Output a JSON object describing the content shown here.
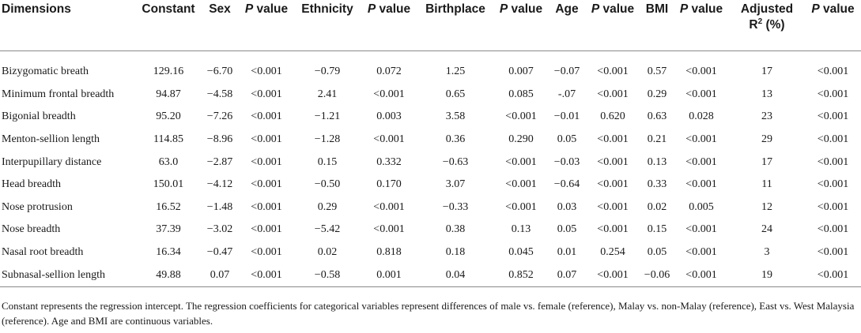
{
  "table": {
    "headers": [
      {
        "plain": "Dimensions"
      },
      {
        "plain": "Constant"
      },
      {
        "plain": "Sex"
      },
      {
        "p": "P",
        "rest": " value"
      },
      {
        "plain": "Ethnicity"
      },
      {
        "p": "P",
        "rest": " value"
      },
      {
        "plain": "Birthplace"
      },
      {
        "p": "P",
        "rest": " value"
      },
      {
        "plain": "Age"
      },
      {
        "p": "P",
        "rest": " value"
      },
      {
        "plain": "BMI"
      },
      {
        "p": "P",
        "rest": " value"
      },
      {
        "line1": "Adjusted",
        "base": "R",
        "sup": "2",
        "tail": " (%)"
      },
      {
        "p": "P",
        "rest": " value"
      }
    ],
    "rows": [
      [
        "Bizygomatic breath",
        "129.16",
        "−6.70",
        "<0.001",
        "−0.79",
        "0.072",
        "1.25",
        "0.007",
        "−0.07",
        "<0.001",
        "0.57",
        "<0.001",
        "17",
        "<0.001"
      ],
      [
        "Minimum frontal breadth",
        "94.87",
        "−4.58",
        "<0.001",
        "2.41",
        "<0.001",
        "0.65",
        "0.085",
        "-.07",
        "<0.001",
        "0.29",
        "<0.001",
        "13",
        "<0.001"
      ],
      [
        "Bigonial breadth",
        "95.20",
        "−7.26",
        "<0.001",
        "−1.21",
        "0.003",
        "3.58",
        "<0.001",
        "−0.01",
        "0.620",
        "0.63",
        "0.028",
        "23",
        "<0.001"
      ],
      [
        "Menton-sellion length",
        "114.85",
        "−8.96",
        "<0.001",
        "−1.28",
        "<0.001",
        "0.36",
        "0.290",
        "0.05",
        "<0.001",
        "0.21",
        "<0.001",
        "29",
        "<0.001"
      ],
      [
        "Interpupillary distance",
        "63.0",
        "−2.87",
        "<0.001",
        "0.15",
        "0.332",
        "−0.63",
        "<0.001",
        "−0.03",
        "<0.001",
        "0.13",
        "<0.001",
        "17",
        "<0.001"
      ],
      [
        "Head breadth",
        "150.01",
        "−4.12",
        "<0.001",
        "−0.50",
        "0.170",
        "3.07",
        "<0.001",
        "−0.64",
        "<0.001",
        "0.33",
        "<0.001",
        "11",
        "<0.001"
      ],
      [
        "Nose protrusion",
        "16.52",
        "−1.48",
        "<0.001",
        "0.29",
        "<0.001",
        "−0.33",
        "<0.001",
        "0.03",
        "<0.001",
        "0.02",
        "0.005",
        "12",
        "<0.001"
      ],
      [
        "Nose breadth",
        "37.39",
        "−3.02",
        "<0.001",
        "−5.42",
        "<0.001",
        "0.38",
        "0.13",
        "0.05",
        "<0.001",
        "0.15",
        "<0.001",
        "24",
        "<0.001"
      ],
      [
        "Nasal root breadth",
        "16.34",
        "−0.47",
        "<0.001",
        "0.02",
        "0.818",
        "0.18",
        "0.045",
        "0.01",
        "0.254",
        "0.05",
        "<0.001",
        "3",
        "<0.001"
      ],
      [
        "Subnasal-sellion length",
        "49.88",
        "0.07",
        "<0.001",
        "−0.58",
        "0.001",
        "0.04",
        "0.852",
        "0.07",
        "<0.001",
        "−0.06",
        "<0.001",
        "19",
        "<0.001"
      ]
    ]
  },
  "footnote": "Constant represents the regression intercept. The regression coefficients for categorical variables represent differences of male vs. female (reference), Malay vs. non-Malay (reference), East vs. West Malaysia (reference). Age and BMI are continuous variables."
}
